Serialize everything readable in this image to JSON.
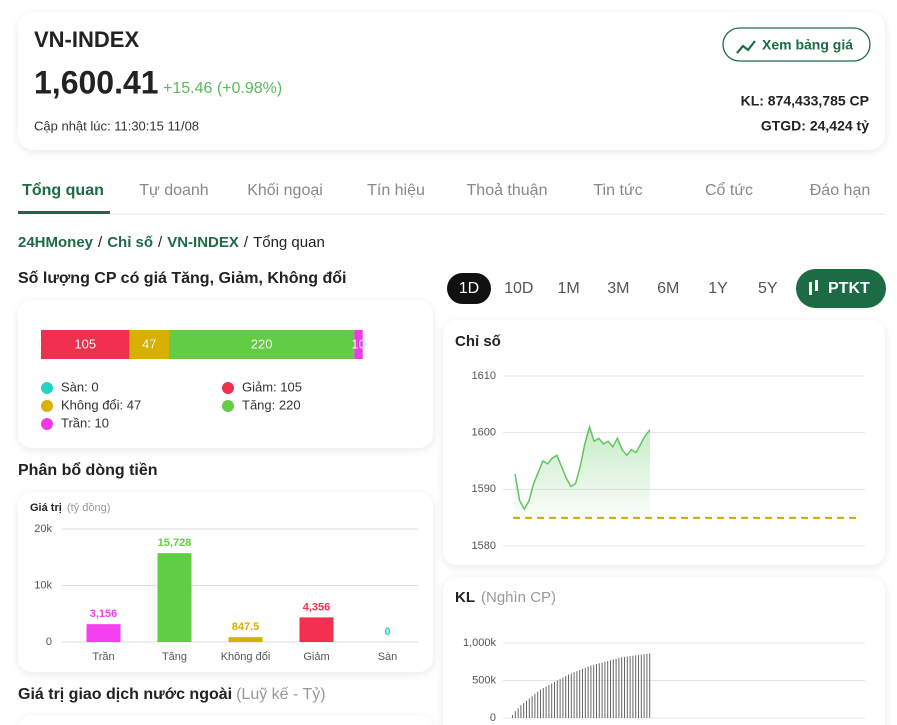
{
  "header": {
    "title": "VN-INDEX",
    "price": "1,600.41",
    "change": "+15.46 (+0.98%)",
    "updated": "Cập nhật lúc: 11:30:15 11/08",
    "button": "Xem bảng giá",
    "volume": "KL: 874,433,785 CP",
    "value": "GTGD: 24,424 tỷ"
  },
  "tabs": [
    "Tổng quan",
    "Tự doanh",
    "Khối ngoại",
    "Tín hiệu",
    "Thoả thuận",
    "Tin tức",
    "Cổ tức",
    "Đáo hạn"
  ],
  "breadcrumb": [
    "24HMoney",
    "Chỉ số",
    "VN-INDEX",
    "Tổng quan"
  ],
  "breadcrumb_separator": "/",
  "periods": [
    "1D",
    "10D",
    "1M",
    "3M",
    "6M",
    "1Y",
    "5Y"
  ],
  "ptkt": "PTKT",
  "sections": {
    "breadth": "Số lượng CP có giá Tăng, Giảm, Không đổi",
    "flow": "Phân bổ dòng tiền",
    "foreign": "Giá trị giao dịch nước ngoài",
    "foreign_unit": "(Luỹ kế - Tỷ)"
  },
  "chart_data": [
    {
      "type": "stacked-bar",
      "xlim": [
        0,
        450
      ],
      "series": [
        {
          "name": "Sàn: 0",
          "color": "#22d3c5",
          "values": [
            0
          ]
        },
        {
          "name": "Giảm: 105",
          "color": "#f0304e",
          "values": [
            105
          ]
        },
        {
          "name": "Không đổi: 47",
          "color": "#d8b000",
          "values": [
            47
          ]
        },
        {
          "name": "Tăng: 220",
          "color": "#62cc45",
          "values": [
            220
          ]
        },
        {
          "name": "Trần: 10",
          "color": "#ee3be6",
          "values": [
            10
          ]
        }
      ]
    },
    {
      "type": "bar",
      "ylabel": "Giá trị",
      "yunit": "(tỷ đồng)",
      "categories": [
        "Trần",
        "Tăng",
        "Không đổi",
        "Giảm",
        "Sàn"
      ],
      "values": [
        3156,
        15728,
        847.5,
        4356,
        0
      ],
      "value_labels": [
        "3,156",
        "15,728",
        "847.5",
        "4,356",
        "0"
      ],
      "colors": [
        "#f53ff0",
        "#5fce44",
        "#d8b000",
        "#f2304f",
        "#25cfd6"
      ],
      "ylim": [
        0,
        20000
      ],
      "yticks": [
        0,
        {
          "value": 10000,
          "label": "10k"
        },
        {
          "value": 20000,
          "label": "20k"
        }
      ],
      "grid": true
    },
    {
      "type": "line",
      "title": "Chỉ số",
      "color": "#5ec65e",
      "values": [
        1592.7,
        1588,
        1586.5,
        1588,
        1591,
        1593,
        1595,
        1594.5,
        1595.5,
        1596,
        1594,
        1592,
        1590.5,
        1591,
        1594,
        1598,
        1601,
        1598.5,
        1599,
        1598,
        1598.5,
        1597.5,
        1599,
        1597,
        1596,
        1597,
        1596.5,
        1598,
        1599.5,
        1600.5
      ],
      "reference": 1584.95,
      "reference_color": "#d4a800",
      "ylim": [
        1578,
        1612
      ],
      "yticks": [
        1580,
        1590,
        1600,
        1610
      ],
      "grid": true
    },
    {
      "type": "volume",
      "title": "KL",
      "unit": "(Nghìn CP)",
      "color": "#666666",
      "values": [
        40000,
        90000,
        130000,
        170000,
        200000,
        230000,
        260000,
        290000,
        320000,
        350000,
        380000,
        400000,
        420000,
        440000,
        460000,
        480000,
        500000,
        520000,
        540000,
        560000,
        580000,
        595000,
        610000,
        625000,
        640000,
        655000,
        670000,
        685000,
        700000,
        710000,
        720000,
        730000,
        740000,
        750000,
        760000,
        770000,
        780000,
        790000,
        800000,
        810000,
        815000,
        820000,
        825000,
        830000,
        835000,
        840000,
        845000,
        850000,
        855000,
        860000
      ],
      "ylim": [
        0,
        1000000
      ],
      "yticks": [
        0,
        {
          "value": 500000,
          "label": "500k"
        },
        {
          "value": 1000000,
          "label": "1,000k"
        }
      ],
      "grid": true
    }
  ]
}
